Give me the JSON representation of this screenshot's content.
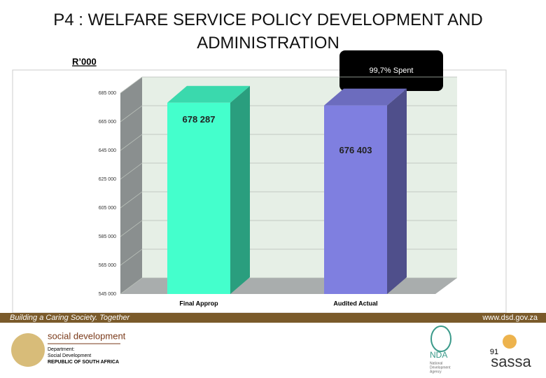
{
  "chart_data": {
    "type": "bar3d",
    "title": "P4 : WELFARE SERVICE POLICY DEVELOPMENT AND ADMINISTRATION",
    "y_label": "R’000",
    "annotation": "99,7% Spent",
    "categories": [
      "Final Approp",
      "Audited Actual"
    ],
    "values": [
      678287,
      676403
    ],
    "value_labels": [
      "678 287",
      "676 403"
    ],
    "colors": [
      "#44ffcc",
      "#7f7fe0"
    ],
    "ylim": [
      545000,
      685000
    ],
    "yticks": [
      {
        "value": 545000,
        "label": "545 000"
      },
      {
        "value": 565000,
        "label": "565 000"
      },
      {
        "value": 585000,
        "label": "585 000"
      },
      {
        "value": 605000,
        "label": "605 000"
      },
      {
        "value": 625000,
        "label": "625 000"
      },
      {
        "value": 645000,
        "label": "645 000"
      },
      {
        "value": 665000,
        "label": "665 000"
      },
      {
        "value": 685000,
        "label": "685 000"
      }
    ],
    "grid": true
  },
  "footer": {
    "tagline": "Building a Caring Society. Together",
    "url": "www.dsd.gov.za",
    "dept_name": "social development",
    "dept_lines": [
      "Department:",
      "Social Development",
      "REPUBLIC OF SOUTH AFRICA"
    ],
    "nda": "NDA",
    "nda_sub": [
      "National",
      "Development",
      "Agency"
    ],
    "sassa": "sassa",
    "page": "91"
  }
}
